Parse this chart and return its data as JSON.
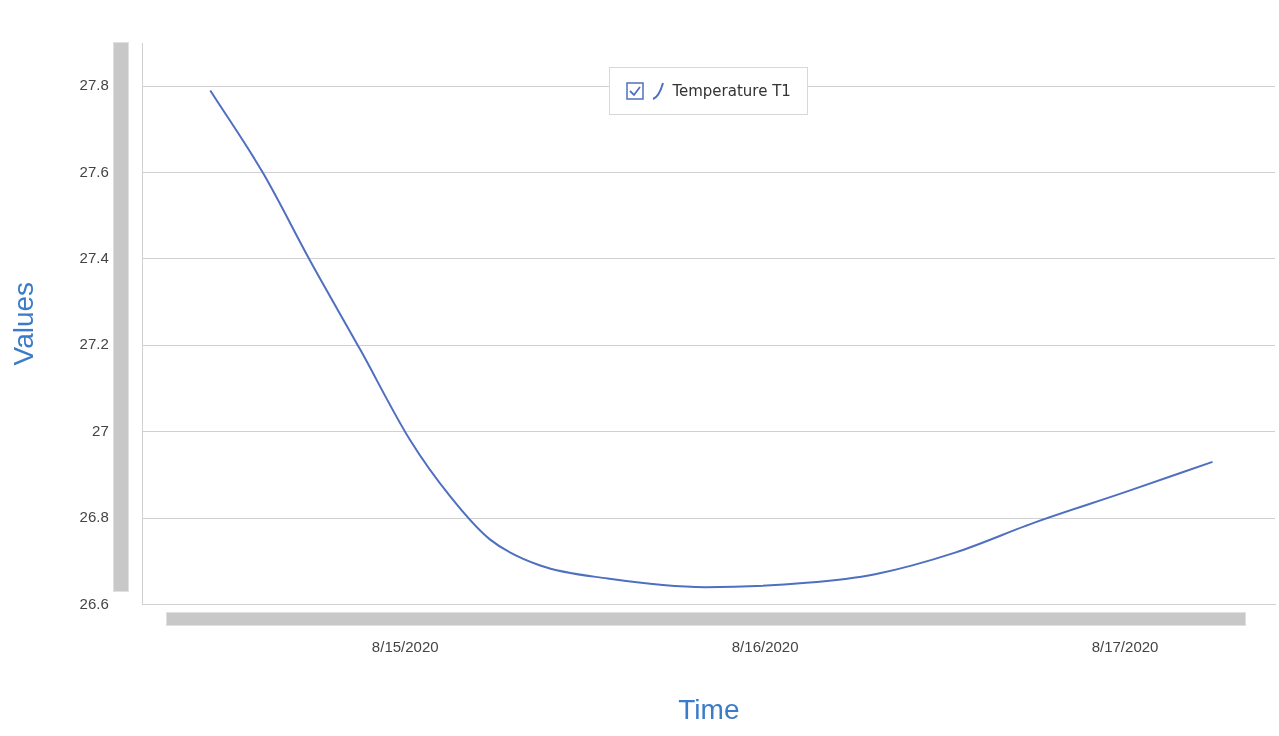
{
  "chart_data": {
    "type": "line",
    "xlabel": "Time",
    "ylabel": "Values",
    "series": [
      {
        "name": "Temperature T1",
        "color": "#4f6fc0",
        "x": [
          "2020-08-14T11:00",
          "2020-08-14T14:30",
          "2020-08-14T17:45",
          "2020-08-14T21:00",
          "2020-08-15T00:20",
          "2020-08-15T03:00",
          "2020-08-15T05:40",
          "2020-08-15T09:00",
          "2020-08-15T13:30",
          "2020-08-15T20:00",
          "2020-08-16T02:45",
          "2020-08-16T07:20",
          "2020-08-16T12:40",
          "2020-08-16T18:00",
          "2020-08-17T00:00",
          "2020-08-17T05:50"
        ],
        "values": [
          27.79,
          27.6,
          27.39,
          27.19,
          26.98,
          26.85,
          26.75,
          26.69,
          26.66,
          26.64,
          26.65,
          26.67,
          26.72,
          26.79,
          26.86,
          26.93
        ]
      }
    ],
    "xlim": [
      "2020-08-14T06:30",
      "2020-08-17T10:00"
    ],
    "xticks": [
      {
        "value": "2020-08-15",
        "label": "8/15/2020"
      },
      {
        "value": "2020-08-16",
        "label": "8/16/2020"
      },
      {
        "value": "2020-08-17",
        "label": "8/17/2020"
      }
    ],
    "ylim": [
      26.6,
      27.9
    ],
    "yticks": [
      26.6,
      {
        "value": 26.8,
        "label": "26.8"
      },
      27,
      27.2,
      27.4,
      27.6,
      27.8
    ],
    "grid": "y",
    "legend": "top",
    "marker": "none",
    "line_style": "solid"
  }
}
